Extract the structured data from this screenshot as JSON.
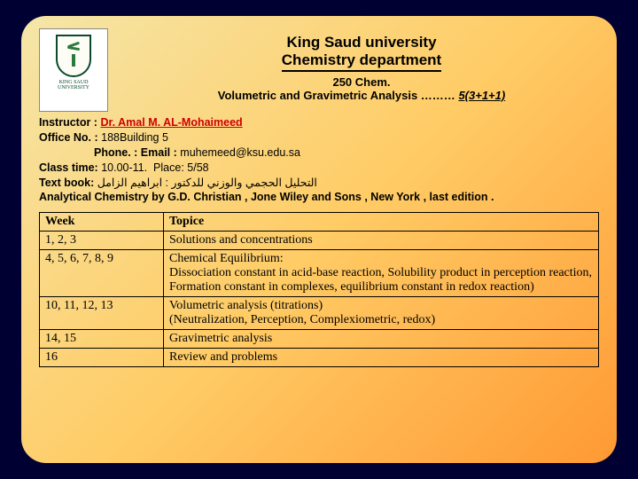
{
  "header": {
    "university": "King Saud university",
    "department": "Chemistry department",
    "course_code": "250 Chem.",
    "course_title_prefix": "Volumetric and Gravimetric Analysis ………",
    "credit": "5(3+1+1)"
  },
  "info": {
    "instructor_label": "Instructor :",
    "instructor_name": "Dr. Amal M. AL-Mohaimeed",
    "office_label": "Office No.  :",
    "office_value": "188Building 5",
    "phone_label": "Phone. :",
    "email_label": "Email :",
    "email_value": "muhemeed@ksu.edu.sa",
    "classtime_label": "Class time:",
    "classtime_value": "10.00-11.",
    "place_label": "Place:",
    "place_value": "5/58",
    "textbook_label": "Text book:",
    "textbook_ar": "التحليل الحجمي والوزني للدكتور : ابراهيم الزامل",
    "textbook_en": "Analytical Chemistry by G.D. Christian , Jone Wiley and Sons , New York , last edition ."
  },
  "table": {
    "headers": {
      "week": "Week",
      "topic": "Topice"
    },
    "rows": [
      {
        "week": "1, 2, 3",
        "topic": "Solutions and concentrations"
      },
      {
        "week": "4, 5, 6, 7, 8, 9",
        "topic": "Chemical Equilibrium:\nDissociation constant in acid-base reaction, Solubility product in perception reaction, Formation constant in complexes, equilibrium constant in redox reaction)"
      },
      {
        "week": "10, 11, 12, 13",
        "topic": "Volumetric analysis (titrations)\n(Neutralization, Perception, Complexiometric, redox)"
      },
      {
        "week": "14, 15",
        "topic": "Gravimetric analysis"
      },
      {
        "week": "16",
        "topic": "Review and problems"
      }
    ]
  },
  "colors": {
    "page_bg": "#000033",
    "slide_grad_from": "#f5e6a8",
    "slide_grad_mid": "#ffcc66",
    "slide_grad_to": "#ff9933",
    "accent_red": "#cc0000",
    "text": "#000000"
  },
  "typography": {
    "title_fontsize": 17,
    "subtitle_fontsize": 13,
    "body_fontsize": 12.5,
    "table_fontsize": 14,
    "title_font": "Arial",
    "body_font": "Times New Roman"
  }
}
